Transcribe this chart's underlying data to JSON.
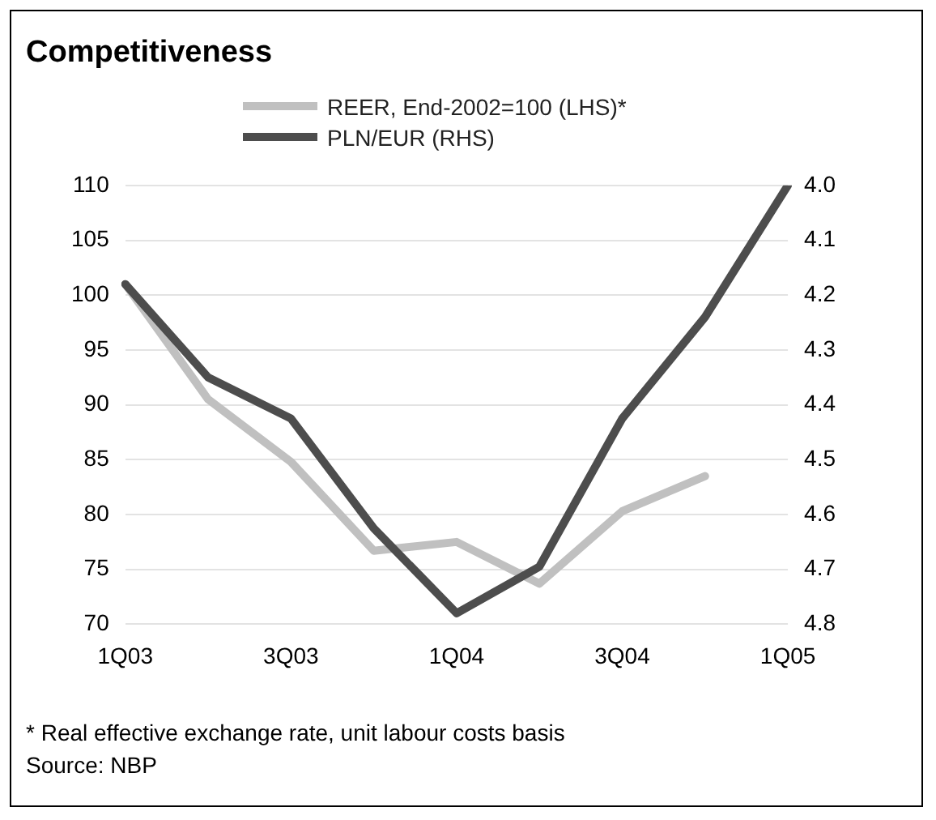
{
  "chart_data": {
    "type": "line",
    "title": "Competitiveness",
    "categories": [
      "1Q03",
      null,
      "3Q03",
      null,
      "1Q04",
      null,
      "3Q04",
      null,
      "1Q05"
    ],
    "series": [
      {
        "name": "REER, End-2002=100 (LHS)*",
        "color": "#c0c0c0",
        "values": [
          101,
          90.5,
          84.8,
          76.7,
          77.5,
          73.7,
          80.3,
          83.5,
          null
        ]
      },
      {
        "name": "PLN/EUR (RHS)",
        "color": "#4d4d4d",
        "axis": "y2",
        "values": [
          4.18,
          4.35,
          4.425,
          4.625,
          4.78,
          4.695,
          4.425,
          4.24,
          4.0
        ]
      }
    ],
    "ylim": [
      70,
      110
    ],
    "yticks": [
      70,
      75,
      80,
      85,
      90,
      95,
      100,
      105,
      110
    ],
    "y2lim": [
      4.8,
      4.0
    ],
    "y2ticks": [
      4.8,
      4.7,
      4.6,
      4.5,
      4.4,
      4.3,
      4.2,
      4.1,
      {
        "value": 4,
        "label": "4.0"
      }
    ],
    "grid": "y",
    "legend": "top",
    "marker": "none",
    "line_style": "solid",
    "annotations": [
      "* Real effective exchange rate, unit labour costs basis",
      "Source: NBP"
    ]
  }
}
